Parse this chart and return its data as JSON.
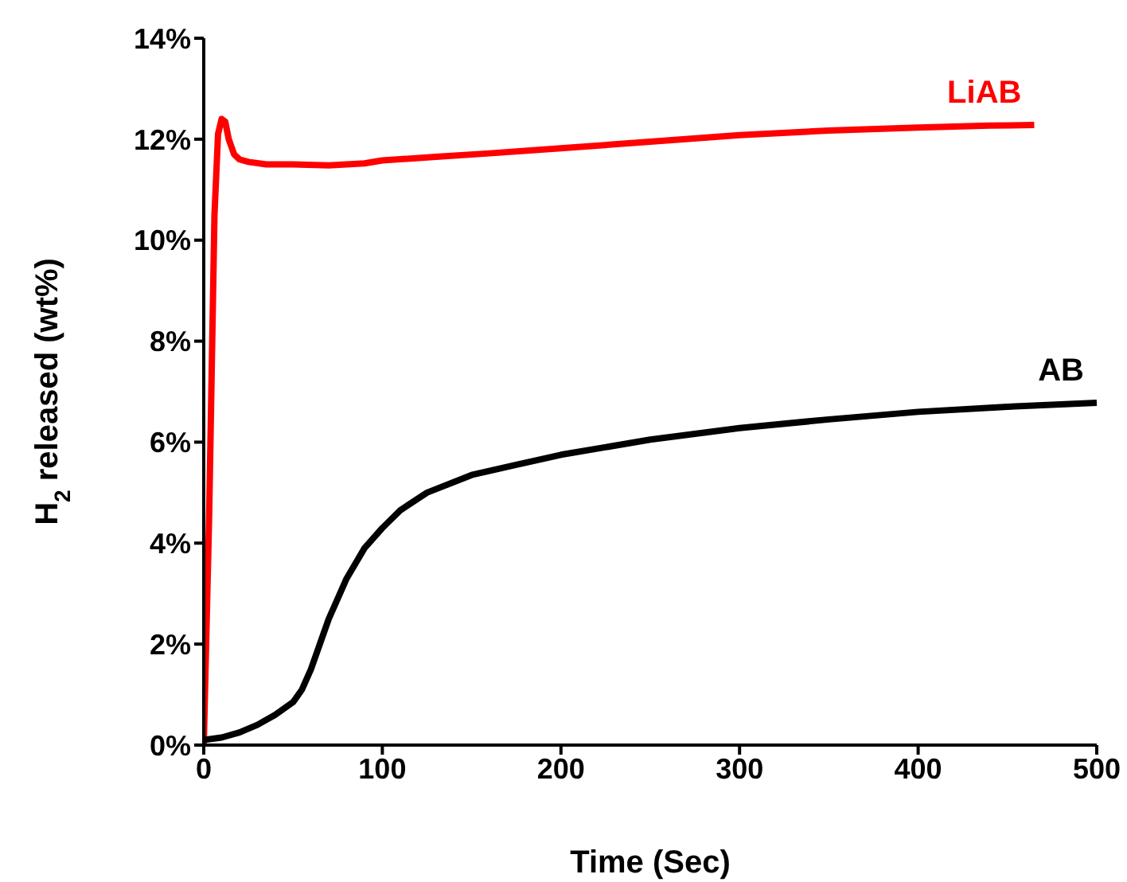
{
  "chart_data": {
    "type": "line",
    "xlabel": "Time (Sec)",
    "ylabel": "H$_{2}$ released (wt%)",
    "xlim": [
      0,
      500
    ],
    "xticks": [
      0,
      100,
      200,
      300,
      400,
      500
    ],
    "ylim": [
      0,
      14
    ],
    "yticks": [
      {
        "value": 0,
        "label": "0%"
      },
      {
        "value": 2,
        "label": "2%"
      },
      {
        "value": 4,
        "label": "4%"
      },
      {
        "value": 6,
        "label": "6%"
      },
      {
        "value": 8,
        "label": "8%"
      },
      {
        "value": 10,
        "label": "10%"
      },
      {
        "value": 12,
        "label": "12%"
      },
      {
        "value": 14,
        "label": "14%"
      }
    ],
    "grid": false,
    "legend": false,
    "marker": "none",
    "line_style": "solid",
    "series": [
      {
        "name": "LiAB",
        "color": "#ff0000",
        "x": [
          0,
          3,
          6,
          8,
          10,
          12,
          14,
          17,
          20,
          25,
          35,
          50,
          70,
          90,
          100,
          130,
          160,
          200,
          250,
          300,
          350,
          400,
          440,
          465
        ],
        "values": [
          0,
          4.5,
          10.5,
          12.1,
          12.4,
          12.35,
          12,
          11.7,
          11.6,
          11.55,
          11.5,
          11.5,
          11.48,
          11.52,
          11.58,
          11.65,
          11.72,
          11.82,
          11.95,
          12.08,
          12.17,
          12.23,
          12.27,
          12.28
        ]
      },
      {
        "name": "AB",
        "color": "#000000",
        "x": [
          0,
          10,
          20,
          30,
          40,
          50,
          55,
          60,
          65,
          70,
          80,
          90,
          100,
          110,
          125,
          150,
          175,
          200,
          250,
          300,
          350,
          400,
          450,
          500
        ],
        "values": [
          0.1,
          0.15,
          0.25,
          0.4,
          0.6,
          0.85,
          1.1,
          1.5,
          2.0,
          2.5,
          3.3,
          3.9,
          4.3,
          4.65,
          5.0,
          5.35,
          5.55,
          5.75,
          6.05,
          6.28,
          6.45,
          6.6,
          6.7,
          6.78
        ]
      }
    ]
  }
}
